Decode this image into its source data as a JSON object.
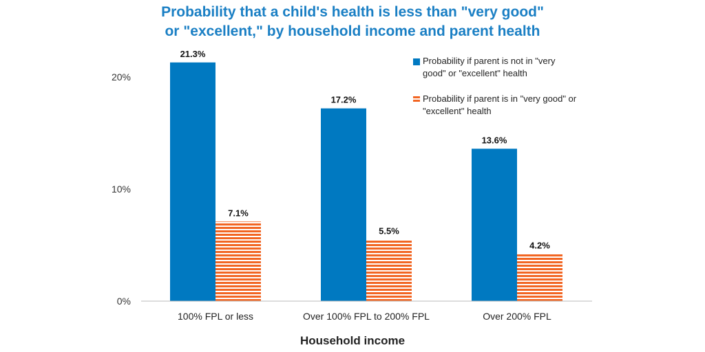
{
  "chart_data": {
    "type": "bar",
    "title": "Probability that a child's health is less than \"very good\" or \"excellent,\" by household income and parent health",
    "title_lines": [
      "Probability that a child's health is less than \"very good\"",
      "or \"excellent,\" by household income and parent health"
    ],
    "xlabel": "Household income",
    "ylabel": "",
    "ylim": [
      0,
      22
    ],
    "yticks": [
      0,
      10,
      20
    ],
    "ytick_labels": [
      "0%",
      "10%",
      "20%"
    ],
    "grid": false,
    "legend_position": "top-right",
    "categories": [
      "100% FPL or less",
      "Over 100% FPL to 200% FPL",
      "Over 200% FPL"
    ],
    "series": [
      {
        "name": "Probability if parent is not in \"very good\" or \"excellent\" health",
        "values": [
          21.3,
          17.2,
          13.6
        ],
        "labels": [
          "21.3%",
          "17.2%",
          "13.6%"
        ],
        "color": "#0079c1",
        "pattern": "solid"
      },
      {
        "name": "Probability if parent is in \"very good\" or \"excellent\" health",
        "values": [
          7.1,
          5.5,
          4.2
        ],
        "labels": [
          "7.1%",
          "5.5%",
          "4.2%"
        ],
        "color": "#f26522",
        "pattern": "horizontal-stripes"
      }
    ]
  }
}
